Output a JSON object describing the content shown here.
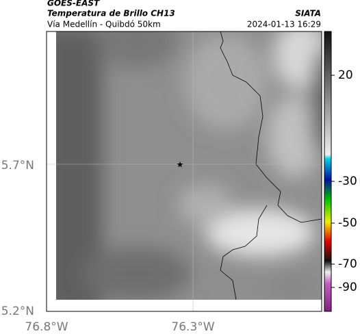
{
  "header": {
    "source": "GOES-EAST",
    "product": "Temperatura de Brillo CH13",
    "region": "Vía Medellín - Quibdó 50km",
    "brand": "SIATA",
    "timestamp": "2024-01-13 16:29"
  },
  "axes": {
    "latitudes": [
      "5.7°N",
      "5.2°N"
    ],
    "longitudes": [
      "76.8°W",
      "76.3°W"
    ]
  },
  "colorbar": {
    "ticks": [
      20,
      -30,
      -50,
      -70,
      -90
    ]
  }
}
